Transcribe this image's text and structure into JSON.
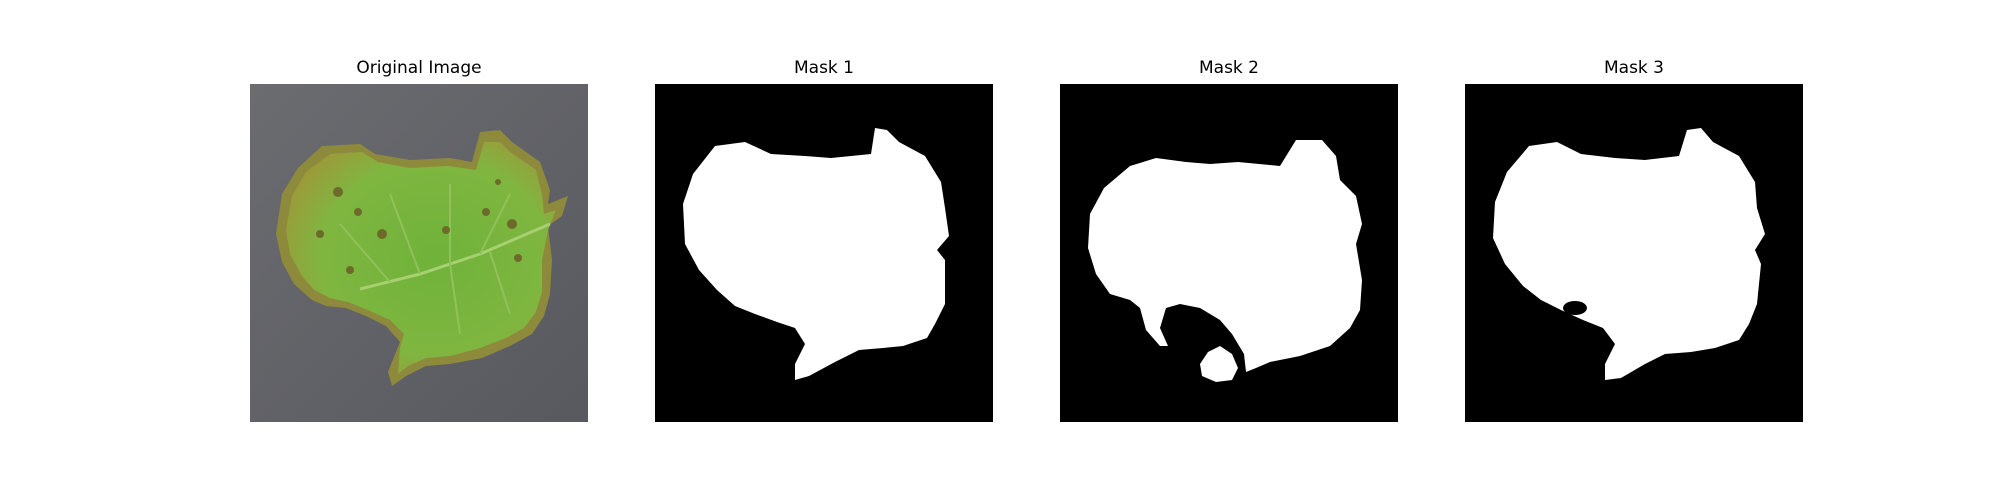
{
  "figure": {
    "panels": [
      {
        "title": "Original Image",
        "kind": "leaf-photo",
        "background": "#5f6066",
        "leaf_color": "#6fb23a"
      },
      {
        "title": "Mask 1",
        "kind": "mask",
        "background": "#000000",
        "mask_color": "#ffffff"
      },
      {
        "title": "Mask 2",
        "kind": "mask",
        "background": "#000000",
        "mask_color": "#ffffff"
      },
      {
        "title": "Mask 3",
        "kind": "mask",
        "background": "#000000",
        "mask_color": "#ffffff"
      }
    ]
  }
}
